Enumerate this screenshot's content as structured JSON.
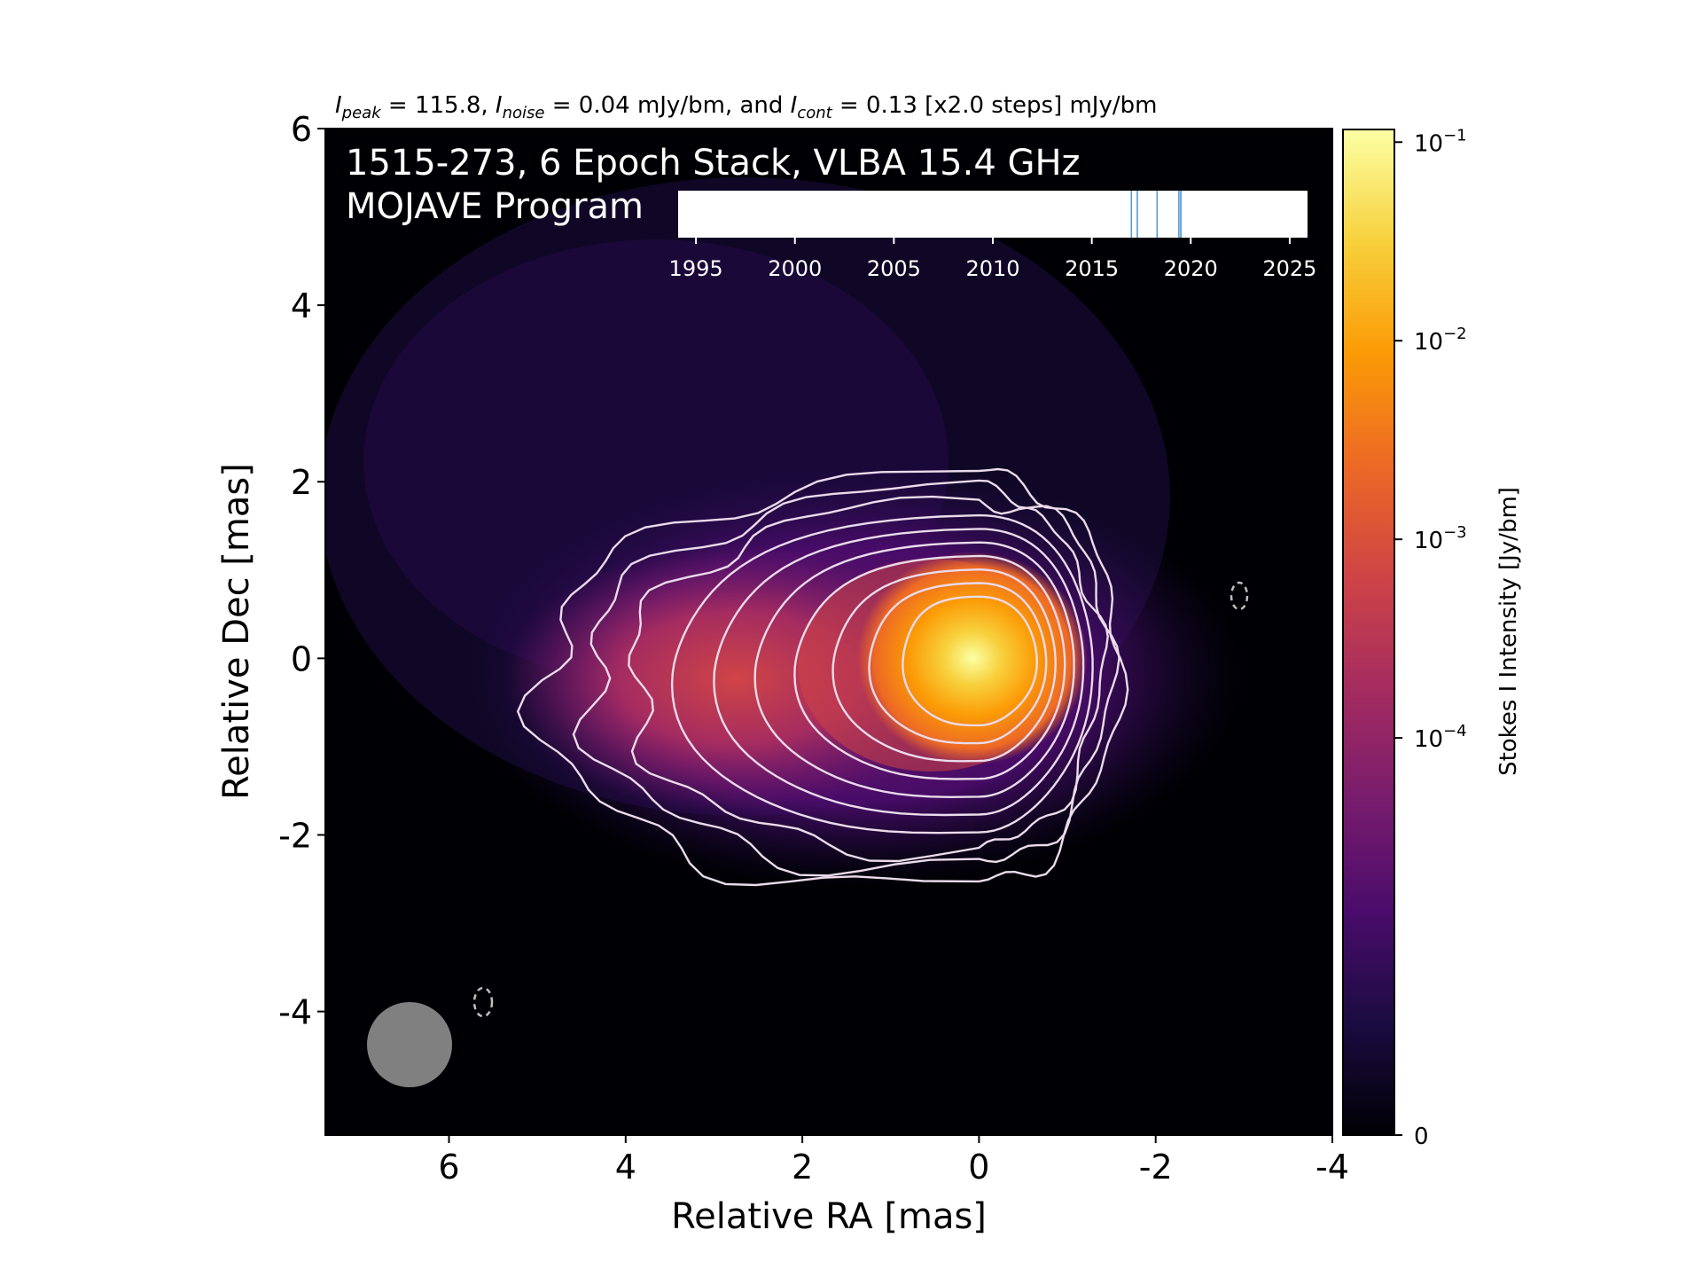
{
  "chart_data": {
    "type": "heatmap",
    "header": {
      "peak_symbol": "I",
      "peak_sub": "peak",
      "peak_value": " = 115.8, ",
      "noise_symbol": "I",
      "noise_sub": "noise",
      "noise_value": " = 0.04 mJy/bm, and ",
      "cont_symbol": "I",
      "cont_sub": "cont",
      "cont_value": " = 0.13 [x2.0 steps] mJy/bm"
    },
    "title_line1": "1515-273, 6 Epoch Stack, VLBA 15.4 GHz",
    "title_line2": "MOJAVE Program",
    "xlabel": "Relative RA [mas]",
    "ylabel": "Relative Dec [mas]",
    "xlim": [
      7.4,
      -4
    ],
    "ylim": [
      -5.4,
      6
    ],
    "xticks": [
      "6",
      "4",
      "2",
      "0",
      "-2",
      "-4"
    ],
    "xtick_values": [
      6,
      4,
      2,
      0,
      -2,
      -4
    ],
    "yticks": [
      "6",
      "4",
      "2",
      "0",
      "-2",
      "-4"
    ],
    "ytick_values": [
      6,
      4,
      2,
      0,
      -2,
      -4
    ],
    "colorbar": {
      "label": "Stokes I Intensity [Jy/bm]",
      "scale": "symlog",
      "range": [
        0,
        0.1158
      ],
      "ticks": [
        {
          "base": "10",
          "exp": "−1",
          "value": 0.1
        },
        {
          "base": "10",
          "exp": "−2",
          "value": 0.01
        },
        {
          "base": "10",
          "exp": "−3",
          "value": 0.001
        },
        {
          "base": "10",
          "exp": "−4",
          "value": 0.0001
        },
        {
          "base": "0",
          "exp": "",
          "value": 0
        }
      ],
      "cmap": [
        "#000004",
        "#1b0c41",
        "#4a0c6b",
        "#781c6d",
        "#a52c60",
        "#cf4446",
        "#ed6925",
        "#fb9b06",
        "#f7d13d",
        "#fcffa4"
      ]
    },
    "epochs": {
      "ticks": [
        "1995",
        "2000",
        "2005",
        "2010",
        "2015",
        "2020",
        "2025"
      ],
      "tick_values": [
        1995,
        2000,
        2005,
        2010,
        2015,
        2020,
        2025
      ],
      "xlim": [
        1994.1,
        2025.9
      ],
      "dates": [
        2017.0,
        2017.3,
        2018.3,
        2019.4,
        2019.5,
        2019.5
      ]
    },
    "peak_position": [
      0,
      0
    ],
    "contour_levels_mJy": [
      0.13,
      0.26,
      0.52,
      1.04,
      2.08,
      4.16,
      8.32,
      16.64,
      33.28,
      66.56
    ],
    "colors": {
      "contour": "#ebdbeb",
      "beam": "#808080",
      "epoch_line": "#5b9bd5",
      "background": "#000004"
    }
  }
}
